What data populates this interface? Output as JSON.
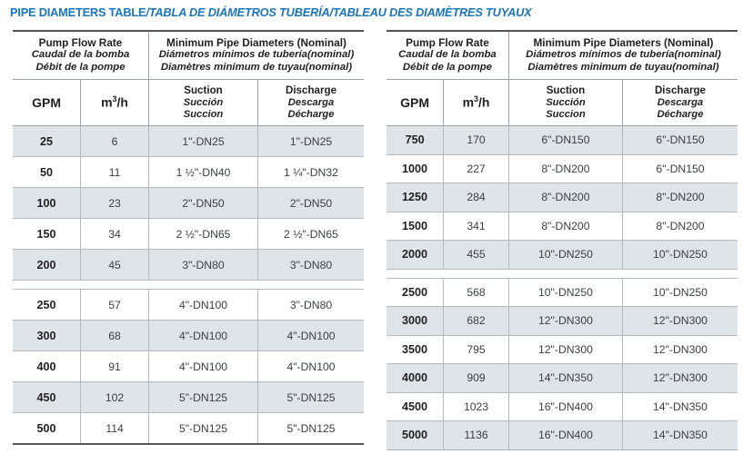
{
  "title": {
    "en": "PIPE DIAMETERS TABLE",
    "sep": "/",
    "es": "TABLA DE DIÁMETROS TUBERÍA",
    "fr": "TABLEAU DES DIAMÈTRES TUYAUX"
  },
  "header": {
    "flow": {
      "en": "Pump Flow Rate",
      "es": "Caudal de la bomba",
      "fr": "Débit de la pompe"
    },
    "diameters": {
      "en": "Minimum Pipe Diameters (Nominal)",
      "es": "Diámetros mínimos de tubería(nominal)",
      "fr": "Diamètres minimum de tuyau(nominal)"
    },
    "gpm": "GPM",
    "m3h": {
      "base": "m",
      "sup": "3",
      "rest": "/h"
    },
    "suction": {
      "en": "Suction",
      "es": "Succión",
      "fr": "Succion"
    },
    "discharge": {
      "en": "Discharge",
      "es": "Descarga",
      "fr": "Décharge"
    }
  },
  "left_table": {
    "sections": [
      {
        "rows": [
          [
            "25",
            "6",
            "1\"-DN25",
            "1\"-DN25"
          ],
          [
            "50",
            "11",
            "1 ½\"-DN40",
            "1 ¼\"-DN32"
          ],
          [
            "100",
            "23",
            "2\"-DN50",
            "2\"-DN50"
          ],
          [
            "150",
            "34",
            "2 ½\"-DN65",
            "2 ½\"-DN65"
          ],
          [
            "200",
            "45",
            "3\"-DN80",
            "3\"-DN80"
          ]
        ]
      },
      {
        "rows": [
          [
            "250",
            "57",
            "4\"-DN100",
            "3\"-DN80"
          ],
          [
            "300",
            "68",
            "4\"-DN100",
            "4\"-DN100"
          ],
          [
            "400",
            "91",
            "4\"-DN100",
            "4\"-DN100"
          ],
          [
            "450",
            "102",
            "5\"-DN125",
            "5\"-DN125"
          ],
          [
            "500",
            "114",
            "5\"-DN125",
            "5\"-DN125"
          ]
        ]
      }
    ]
  },
  "right_table": {
    "sections": [
      {
        "rows": [
          [
            "750",
            "170",
            "6\"-DN150",
            "6\"-DN150"
          ],
          [
            "1000",
            "227",
            "8\"-DN200",
            "6\"-DN150"
          ],
          [
            "1250",
            "284",
            "8\"-DN200",
            "8\"-DN200"
          ],
          [
            "1500",
            "341",
            "8\"-DN200",
            "8\"-DN200"
          ],
          [
            "2000",
            "455",
            "10\"-DN250",
            "10\"-DN250"
          ]
        ]
      },
      {
        "rows": [
          [
            "2500",
            "568",
            "10\"-DN250",
            "10\"-DN250"
          ],
          [
            "3000",
            "682",
            "12\"-DN300",
            "12\"-DN300"
          ],
          [
            "3500",
            "795",
            "12\"-DN300",
            "12\"-DN300"
          ],
          [
            "4000",
            "909",
            "14\"-DN350",
            "12\"-DN300"
          ],
          [
            "4500",
            "1023",
            "16\"-DN400",
            "14\"-DN350"
          ],
          [
            "5000",
            "1136",
            "16\"-DN400",
            "14\"-DN350"
          ]
        ]
      }
    ]
  },
  "colors": {
    "title_blue": "#1b75bb",
    "row_shade": "#dee4e8",
    "border_dark": "#515256",
    "border_gray": "#b3b9bd",
    "text_dark": "#231f20"
  }
}
